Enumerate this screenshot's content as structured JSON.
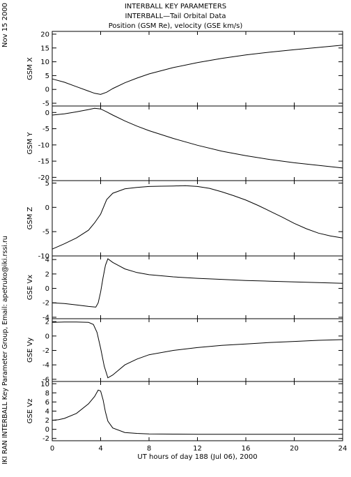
{
  "header": {
    "title_1": "INTERBALL KEY PARAMETERS",
    "title_2": "INTERBALL—Tail Orbital Data",
    "title_3": "Position (GSM Re), velocity (GSE km/s)"
  },
  "side_labels": {
    "date": "Nov 15 2000",
    "credit": "IKI RAN INTERBALL Key Parameter Group, Email: apetruko@iki.rssi.ru"
  },
  "chart_data": [
    {
      "type": "line",
      "ylabel": "GSM X",
      "ylim": [
        -6,
        21
      ],
      "yticks": [
        -5,
        0,
        5,
        10,
        15,
        20
      ],
      "x": [
        0,
        1,
        2,
        3,
        3.5,
        4,
        4.5,
        5,
        6,
        7,
        8,
        10,
        12,
        14,
        16,
        18,
        20,
        22,
        24
      ],
      "y": [
        3.8,
        2.6,
        1.0,
        -0.6,
        -1.4,
        -1.8,
        -1.0,
        0.3,
        2.4,
        4.1,
        5.6,
        7.9,
        9.7,
        11.2,
        12.5,
        13.5,
        14.4,
        15.2,
        16.0
      ]
    },
    {
      "type": "line",
      "ylabel": "GSM Y",
      "ylim": [
        -21,
        2
      ],
      "yticks": [
        -20,
        -15,
        -10,
        -5,
        0
      ],
      "x": [
        0,
        1,
        2,
        3,
        3.5,
        4,
        4.5,
        5,
        6,
        7,
        8,
        10,
        12,
        14,
        16,
        18,
        20,
        22,
        24
      ],
      "y": [
        -0.8,
        -0.4,
        0.2,
        0.9,
        1.3,
        1.1,
        0.2,
        -0.8,
        -2.6,
        -4.2,
        -5.6,
        -8.0,
        -10.1,
        -11.9,
        -13.3,
        -14.5,
        -15.5,
        -16.3,
        -17.1
      ]
    },
    {
      "type": "line",
      "ylabel": "GSM Z",
      "ylim": [
        -10,
        5.5
      ],
      "yticks": [
        -10,
        -5,
        0,
        5
      ],
      "x": [
        0,
        1,
        2,
        3,
        3.5,
        4,
        4.5,
        5,
        6,
        7,
        8,
        9,
        10,
        11,
        12,
        13,
        14,
        15,
        16,
        17,
        18,
        19,
        20,
        21,
        22,
        23,
        24
      ],
      "y": [
        -8.6,
        -7.5,
        -6.3,
        -4.7,
        -3.2,
        -1.4,
        1.6,
        2.9,
        3.8,
        4.1,
        4.3,
        4.35,
        4.4,
        4.45,
        4.3,
        3.9,
        3.2,
        2.4,
        1.5,
        0.4,
        -0.8,
        -2.0,
        -3.3,
        -4.4,
        -5.3,
        -5.9,
        -6.3
      ]
    },
    {
      "type": "line",
      "ylabel": "GSE Vx",
      "ylim": [
        -4.2,
        4.5
      ],
      "yticks": [
        -4,
        -2,
        0,
        2,
        4
      ],
      "x": [
        0,
        1,
        2,
        3,
        3.6,
        3.8,
        4.0,
        4.2,
        4.4,
        4.6,
        5,
        6,
        7,
        8,
        10,
        12,
        14,
        16,
        18,
        20,
        22,
        24
      ],
      "y": [
        -2.0,
        -2.1,
        -2.3,
        -2.5,
        -2.6,
        -2.0,
        -0.5,
        1.5,
        3.2,
        4.1,
        3.6,
        2.7,
        2.2,
        1.9,
        1.6,
        1.4,
        1.25,
        1.1,
        1.0,
        0.9,
        0.8,
        0.7
      ]
    },
    {
      "type": "line",
      "ylabel": "GSE Vy",
      "ylim": [
        -6.3,
        2.4
      ],
      "yticks": [
        -6,
        -4,
        -2,
        0,
        2
      ],
      "x": [
        0,
        1,
        2,
        3,
        3.4,
        3.7,
        4.0,
        4.3,
        4.6,
        5,
        6,
        7,
        8,
        10,
        12,
        14,
        16,
        18,
        20,
        22,
        24
      ],
      "y": [
        1.9,
        1.95,
        1.95,
        1.9,
        1.6,
        0.5,
        -1.7,
        -4.2,
        -5.8,
        -5.4,
        -4.0,
        -3.2,
        -2.6,
        -2.0,
        -1.6,
        -1.3,
        -1.1,
        -0.9,
        -0.75,
        -0.6,
        -0.5
      ]
    },
    {
      "type": "line",
      "ylabel": "GSE Vz",
      "ylim": [
        -2.5,
        10.5
      ],
      "yticks": [
        -2,
        0,
        2,
        4,
        6,
        8,
        10
      ],
      "x": [
        0,
        0.5,
        1,
        2,
        3,
        3.5,
        3.8,
        4.0,
        4.2,
        4.4,
        4.6,
        5,
        6,
        7,
        8,
        10,
        12,
        14,
        16,
        18,
        20,
        22,
        24
      ],
      "y": [
        2.0,
        2.1,
        2.4,
        3.5,
        5.6,
        7.2,
        8.6,
        8.4,
        6.5,
        3.8,
        1.8,
        0.3,
        -0.7,
        -0.9,
        -1.0,
        -1.05,
        -1.1,
        -1.1,
        -1.1,
        -1.1,
        -1.1,
        -1.1,
        -1.1
      ]
    }
  ],
  "x_axis": {
    "xlabel": "UT hours of day 188 (Jul 06), 2000",
    "xlim": [
      0,
      24
    ],
    "ticks": [
      0,
      4,
      8,
      12,
      16,
      20,
      24
    ],
    "tick_labels": [
      "0",
      "4",
      "8",
      "12",
      "16",
      "20",
      "24"
    ]
  }
}
